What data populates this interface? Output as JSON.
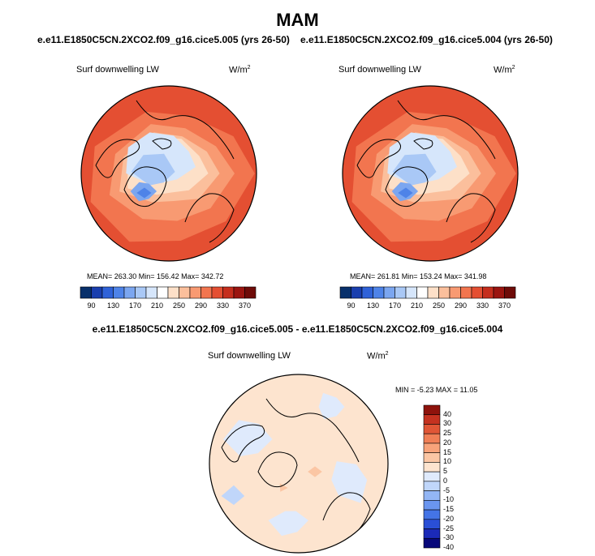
{
  "page_title": "MAM",
  "panels": [
    {
      "title": "e.e11.E1850C5CN.2XCO2.f09_g16.cice5.005 (yrs 26-50)",
      "variable": "Surf downwelling LW",
      "units_base": "W/m",
      "units_exp": "2",
      "stats": "MEAN= 263.30   Min= 156.42   Max= 342.72"
    },
    {
      "title": "e.e11.E1850C5CN.2XCO2.f09_g16.cice5.004 (yrs 26-50)",
      "variable": "Surf downwelling LW",
      "units_base": "W/m",
      "units_exp": "2",
      "stats": "MEAN= 261.81   Min= 153.24   Max= 341.98"
    },
    {
      "title": "e.e11.E1850C5CN.2XCO2.f09_g16.cice5.005 - e.e11.E1850C5CN.2XCO2.f09_g16.cice5.004",
      "variable": "Surf downwelling LW",
      "units_base": "W/m",
      "units_exp": "2",
      "stats": "MIN =  -5.23 MAX =  11.05"
    }
  ],
  "chart_data": [
    {
      "type": "heatmap",
      "projection": "north polar stereographic",
      "colorbar_orientation": "horizontal",
      "levels": [
        90,
        130,
        170,
        210,
        250,
        290,
        330,
        370
      ],
      "tick_labels": [
        "90",
        "130",
        "170",
        "210",
        "250",
        "290",
        "330",
        "370"
      ],
      "mean": 263.3,
      "min": 156.42,
      "max": 342.72
    },
    {
      "type": "heatmap",
      "projection": "north polar stereographic",
      "colorbar_orientation": "horizontal",
      "levels": [
        90,
        130,
        170,
        210,
        250,
        290,
        330,
        370
      ],
      "tick_labels": [
        "90",
        "130",
        "170",
        "210",
        "250",
        "290",
        "330",
        "370"
      ],
      "mean": 261.81,
      "min": 153.24,
      "max": 341.98
    },
    {
      "type": "heatmap",
      "projection": "north polar stereographic",
      "colorbar_orientation": "vertical",
      "levels": [
        -40,
        -30,
        -25,
        -20,
        -15,
        -10,
        -5,
        0,
        5,
        10,
        15,
        20,
        25,
        30,
        40
      ],
      "tick_labels": [
        "-40",
        "-30",
        "-25",
        "-20",
        "-15",
        "-10",
        "-5",
        "0",
        "5",
        "10",
        "15",
        "20",
        "25",
        "30",
        "40"
      ],
      "min": -5.23,
      "max": 11.05
    }
  ],
  "colors": {
    "scale_abs": [
      "#08306b",
      "#1a3fae",
      "#2f62d8",
      "#4e83e8",
      "#7ba6f0",
      "#a9c8f6",
      "#d6e6fb",
      "#ffffff",
      "#fde0c8",
      "#fbbf9c",
      "#f89a72",
      "#f2754f",
      "#e44f32",
      "#c52e1d",
      "#9b1510",
      "#6e0b08"
    ],
    "scale_diff": [
      "#08087a",
      "#1b2ab8",
      "#2a4fd6",
      "#4474e6",
      "#6a95ef",
      "#93b6f5",
      "#c0d6fa",
      "#dfeafc",
      "#fde4cf",
      "#fbc6a4",
      "#f8a37a",
      "#f07f56",
      "#e05636",
      "#c43220",
      "#8e130c"
    ],
    "coast": "#000000"
  }
}
